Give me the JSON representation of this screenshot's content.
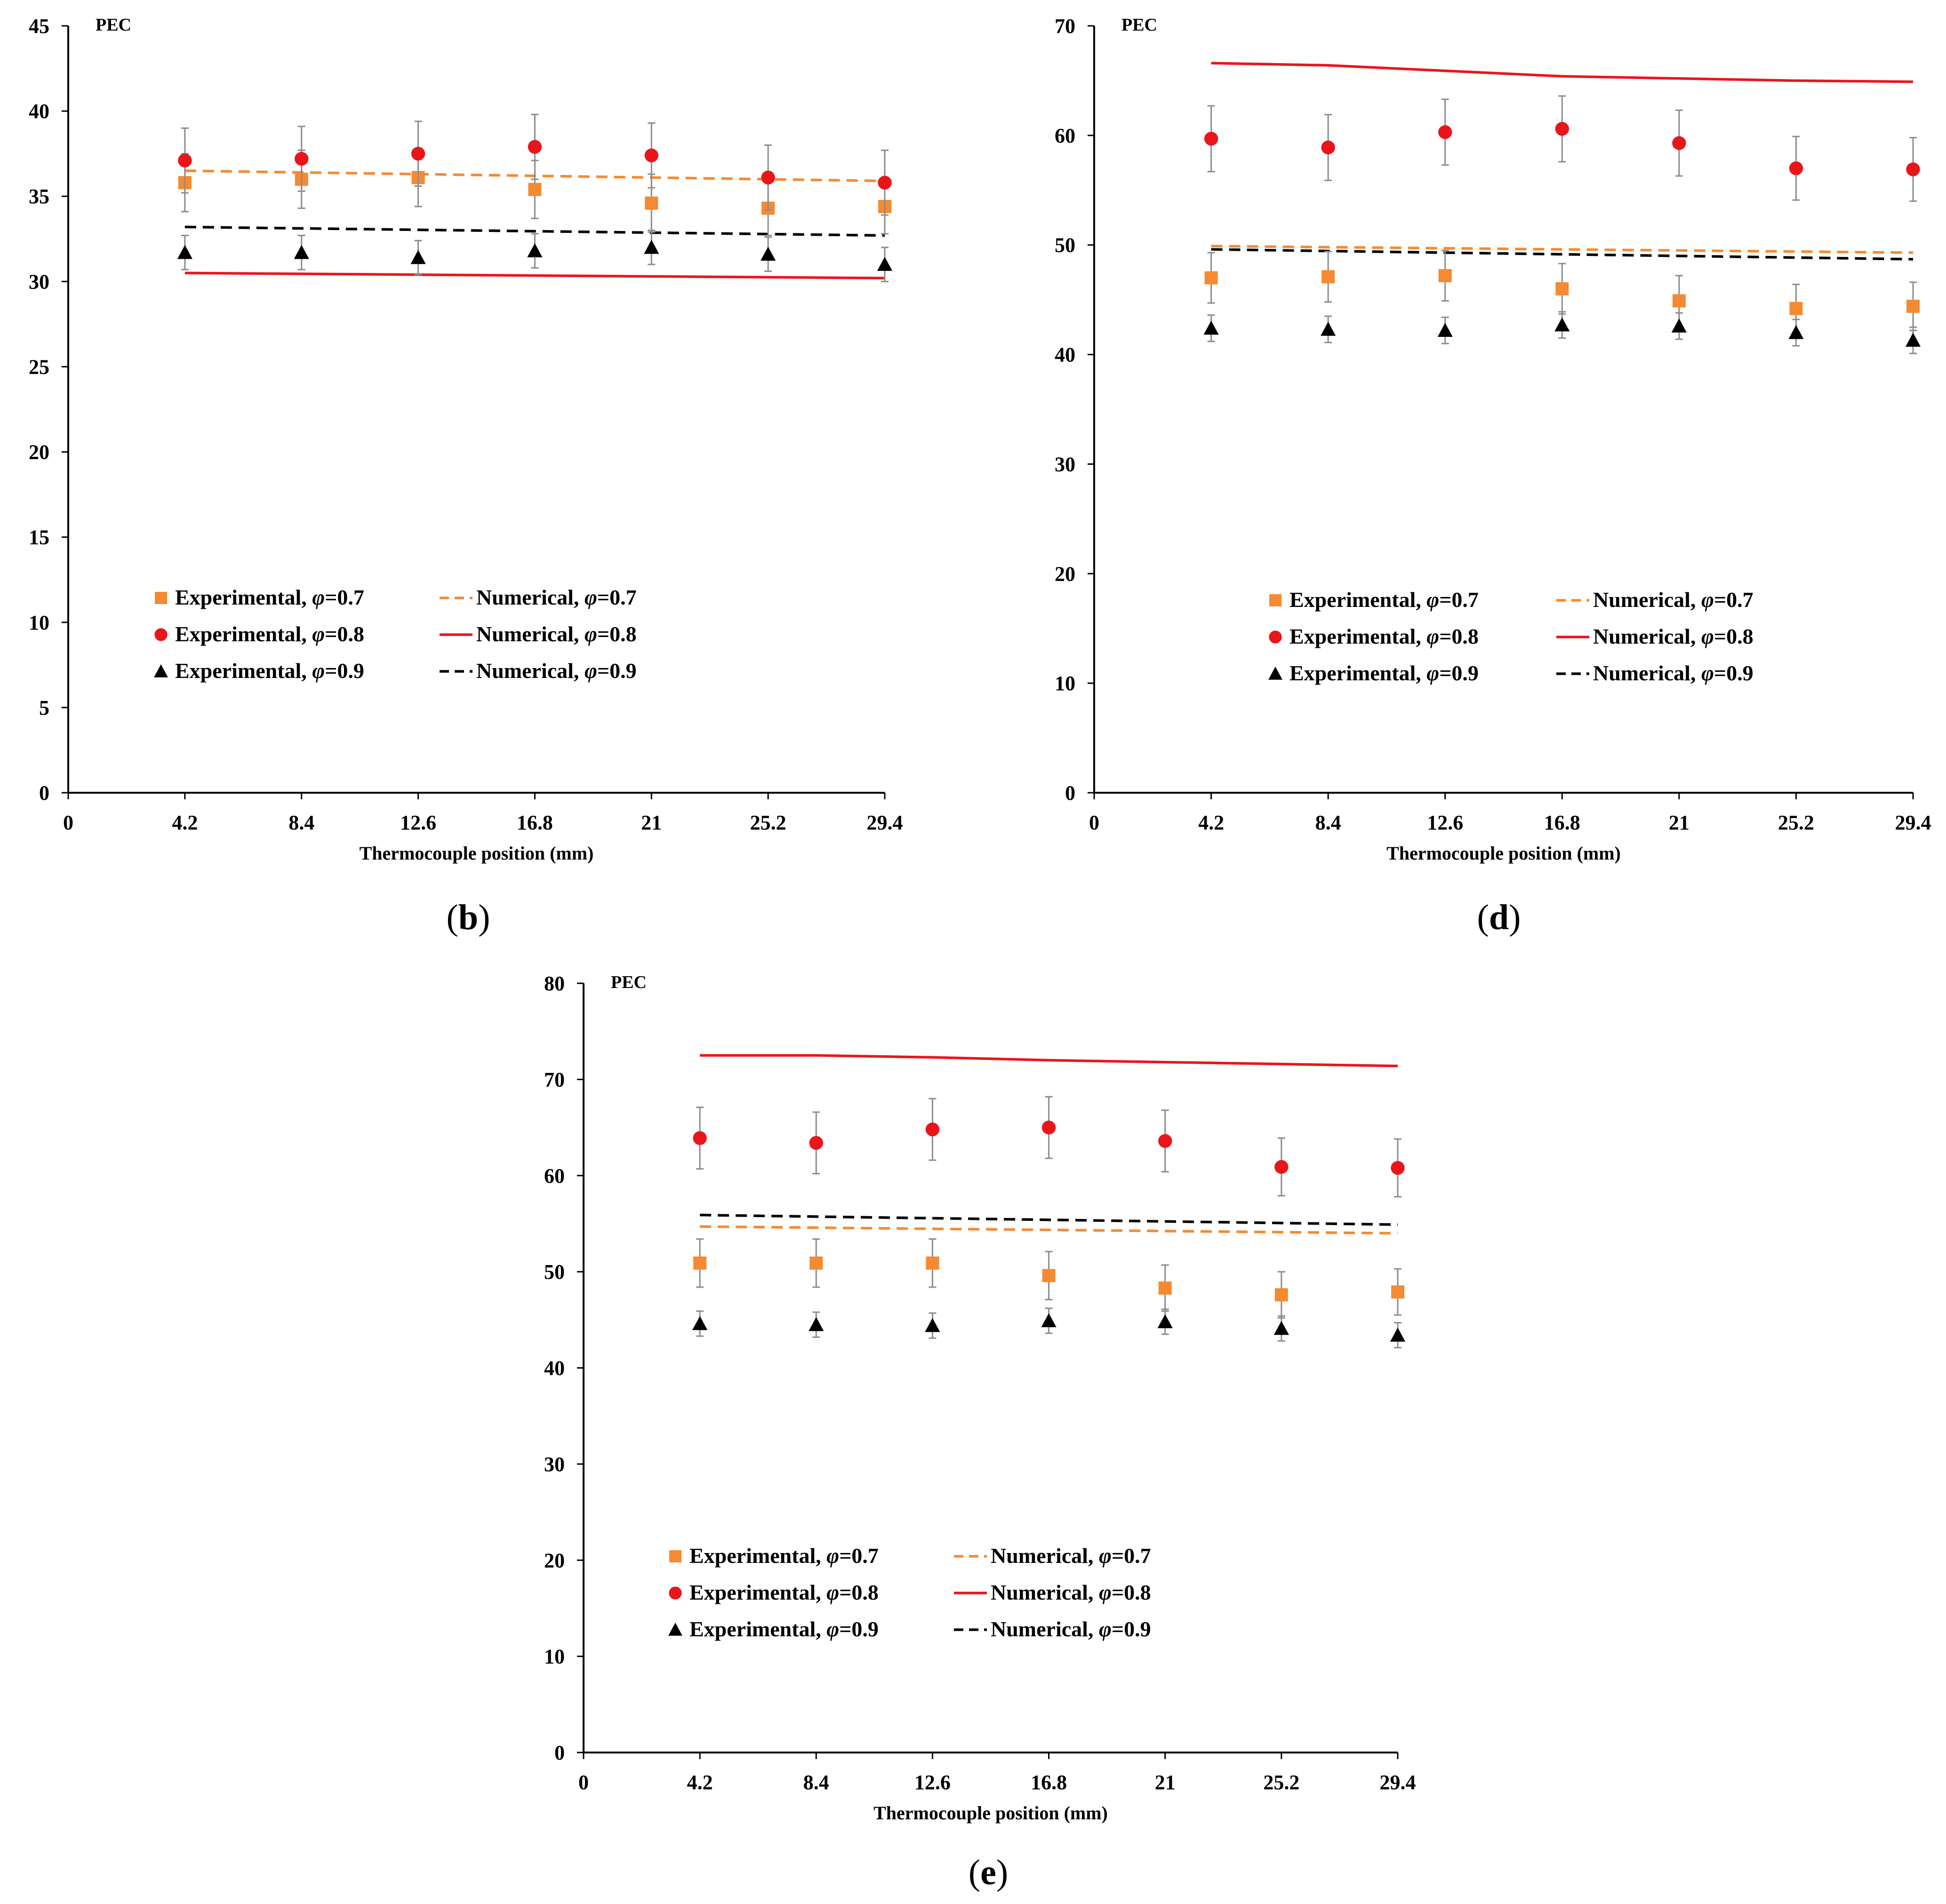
{
  "chart_data": [
    {
      "type": "scatter",
      "panel_label": "b",
      "xlabel": "Thermocouple position (mm)",
      "ylabel": "PEC",
      "x_ticks": [
        "0",
        "4.2",
        "8.4",
        "12.6",
        "16.8",
        "21",
        "25.2",
        "29.4"
      ],
      "xlim": [
        0,
        29.4
      ],
      "ylim": [
        0,
        45
      ],
      "y_ticks": [
        0,
        5,
        10,
        15,
        20,
        25,
        30,
        35,
        40,
        45
      ],
      "grid": false,
      "legend_placement": "bottom-center",
      "series": [
        {
          "name": "Experimental, φ=0.7",
          "kind": "marker",
          "marker": "square",
          "color": "#F58A32",
          "x": [
            4.2,
            8.4,
            12.6,
            16.8,
            21,
            25.2,
            29.4
          ],
          "y": [
            35.8,
            36.0,
            36.1,
            35.4,
            34.6,
            34.3,
            34.4
          ],
          "err": [
            1.7,
            1.7,
            1.7,
            1.7,
            1.7,
            1.6,
            1.6
          ]
        },
        {
          "name": "Experimental, φ=0.8",
          "kind": "marker",
          "marker": "circle",
          "color": "#E8161B",
          "x": [
            4.2,
            8.4,
            12.6,
            16.8,
            21,
            25.2,
            29.4
          ],
          "y": [
            37.1,
            37.2,
            37.5,
            37.9,
            37.4,
            36.1,
            35.8
          ],
          "err": [
            1.9,
            1.9,
            1.9,
            1.9,
            1.9,
            1.9,
            1.9
          ]
        },
        {
          "name": "Experimental, φ=0.9",
          "kind": "marker",
          "marker": "triangle",
          "color": "#000000",
          "x": [
            4.2,
            8.4,
            12.6,
            16.8,
            21,
            25.2,
            29.4
          ],
          "y": [
            31.7,
            31.7,
            31.4,
            31.8,
            32.0,
            31.6,
            31.0
          ],
          "err": [
            1.0,
            1.0,
            1.0,
            1.0,
            1.0,
            1.0,
            1.0
          ]
        },
        {
          "name": "Numerical, φ=0.7",
          "kind": "line",
          "dash": "dashed",
          "color": "#F58A32",
          "x": [
            4.2,
            29.4
          ],
          "y": [
            36.5,
            35.9
          ]
        },
        {
          "name": "Numerical, φ=0.8",
          "kind": "line",
          "dash": "solid",
          "color": "#E8161B",
          "x": [
            4.2,
            29.4
          ],
          "y": [
            30.5,
            30.2
          ]
        },
        {
          "name": "Numerical, φ=0.9",
          "kind": "line",
          "dash": "dashed",
          "color": "#000000",
          "x": [
            4.2,
            29.4
          ],
          "y": [
            33.2,
            32.7
          ]
        }
      ]
    },
    {
      "type": "scatter",
      "panel_label": "d",
      "xlabel": "Thermocouple position (mm)",
      "ylabel": "PEC",
      "x_ticks": [
        "0",
        "4.2",
        "8.4",
        "12.6",
        "16.8",
        "21",
        "25.2",
        "29.4"
      ],
      "xlim": [
        0,
        29.4
      ],
      "ylim": [
        0,
        70
      ],
      "y_ticks": [
        0,
        10,
        20,
        30,
        40,
        50,
        60,
        70
      ],
      "grid": false,
      "legend_placement": "bottom-center",
      "series": [
        {
          "name": "Experimental, φ=0.7",
          "kind": "marker",
          "marker": "square",
          "color": "#F58A32",
          "x": [
            4.2,
            8.4,
            12.6,
            16.8,
            21,
            25.2,
            29.4
          ],
          "y": [
            47.0,
            47.1,
            47.2,
            46.0,
            44.9,
            44.2,
            44.4
          ],
          "err": [
            2.3,
            2.3,
            2.3,
            2.3,
            2.3,
            2.2,
            2.2
          ]
        },
        {
          "name": "Experimental, φ=0.8",
          "kind": "marker",
          "marker": "circle",
          "color": "#E8161B",
          "x": [
            4.2,
            8.4,
            12.6,
            16.8,
            21,
            25.2,
            29.4
          ],
          "y": [
            59.7,
            58.9,
            60.3,
            60.6,
            59.3,
            57.0,
            56.9
          ],
          "err": [
            3.0,
            3.0,
            3.0,
            3.0,
            3.0,
            2.9,
            2.9
          ]
        },
        {
          "name": "Experimental, φ=0.9",
          "kind": "marker",
          "marker": "triangle",
          "color": "#000000",
          "x": [
            4.2,
            8.4,
            12.6,
            16.8,
            21,
            25.2,
            29.4
          ],
          "y": [
            42.4,
            42.3,
            42.2,
            42.7,
            42.6,
            42.0,
            41.3
          ],
          "err": [
            1.2,
            1.2,
            1.2,
            1.2,
            1.2,
            1.2,
            1.2
          ]
        },
        {
          "name": "Numerical, φ=0.7",
          "kind": "line",
          "dash": "dashed",
          "color": "#F58A32",
          "x": [
            4.2,
            29.4
          ],
          "y": [
            49.9,
            49.3
          ]
        },
        {
          "name": "Numerical, φ=0.8",
          "kind": "line",
          "dash": "solid",
          "color": "#E8161B",
          "x": [
            4.2,
            8.4,
            12.6,
            16.8,
            21,
            25.2,
            29.4
          ],
          "y": [
            66.6,
            66.4,
            65.9,
            65.4,
            65.2,
            65.0,
            64.9
          ]
        },
        {
          "name": "Numerical, φ=0.9",
          "kind": "line",
          "dash": "dashed",
          "color": "#000000",
          "x": [
            4.2,
            29.4
          ],
          "y": [
            49.6,
            48.7
          ]
        }
      ]
    },
    {
      "type": "scatter",
      "panel_label": "e",
      "xlabel": "Thermocouple position (mm)",
      "ylabel": "PEC",
      "x_ticks": [
        "0",
        "4.2",
        "8.4",
        "12.6",
        "16.8",
        "21",
        "25.2",
        "29.4"
      ],
      "xlim": [
        0,
        29.4
      ],
      "ylim": [
        0,
        80
      ],
      "y_ticks": [
        0,
        10,
        20,
        30,
        40,
        50,
        60,
        70,
        80
      ],
      "grid": false,
      "legend_placement": "bottom-center",
      "series": [
        {
          "name": "Experimental, φ=0.7",
          "kind": "marker",
          "marker": "square",
          "color": "#F58A32",
          "x": [
            4.2,
            8.4,
            12.6,
            16.8,
            21,
            25.2,
            29.4
          ],
          "y": [
            50.9,
            50.9,
            50.9,
            49.6,
            48.3,
            47.6,
            47.9
          ],
          "err": [
            2.5,
            2.5,
            2.5,
            2.5,
            2.4,
            2.4,
            2.4
          ]
        },
        {
          "name": "Experimental, φ=0.8",
          "kind": "marker",
          "marker": "circle",
          "color": "#E8161B",
          "x": [
            4.2,
            8.4,
            12.6,
            16.8,
            21,
            25.2,
            29.4
          ],
          "y": [
            63.9,
            63.4,
            64.8,
            65.0,
            63.6,
            60.9,
            60.8
          ],
          "err": [
            3.2,
            3.2,
            3.2,
            3.2,
            3.2,
            3.0,
            3.0
          ]
        },
        {
          "name": "Experimental, φ=0.9",
          "kind": "marker",
          "marker": "triangle",
          "color": "#000000",
          "x": [
            4.2,
            8.4,
            12.6,
            16.8,
            21,
            25.2,
            29.4
          ],
          "y": [
            44.6,
            44.5,
            44.4,
            44.9,
            44.8,
            44.1,
            43.4
          ],
          "err": [
            1.3,
            1.3,
            1.3,
            1.3,
            1.3,
            1.3,
            1.3
          ]
        },
        {
          "name": "Numerical, φ=0.7",
          "kind": "line",
          "dash": "dashed",
          "color": "#F58A32",
          "x": [
            4.2,
            29.4
          ],
          "y": [
            54.7,
            54.0
          ]
        },
        {
          "name": "Numerical, φ=0.8",
          "kind": "line",
          "dash": "solid",
          "color": "#E8161B",
          "x": [
            4.2,
            8.4,
            12.6,
            16.8,
            21,
            25.2,
            29.4
          ],
          "y": [
            72.5,
            72.5,
            72.3,
            72.0,
            71.8,
            71.6,
            71.4
          ]
        },
        {
          "name": "Numerical, φ=0.9",
          "kind": "line",
          "dash": "dashed",
          "color": "#000000",
          "x": [
            4.2,
            29.4
          ],
          "y": [
            55.9,
            54.9
          ]
        }
      ]
    }
  ]
}
